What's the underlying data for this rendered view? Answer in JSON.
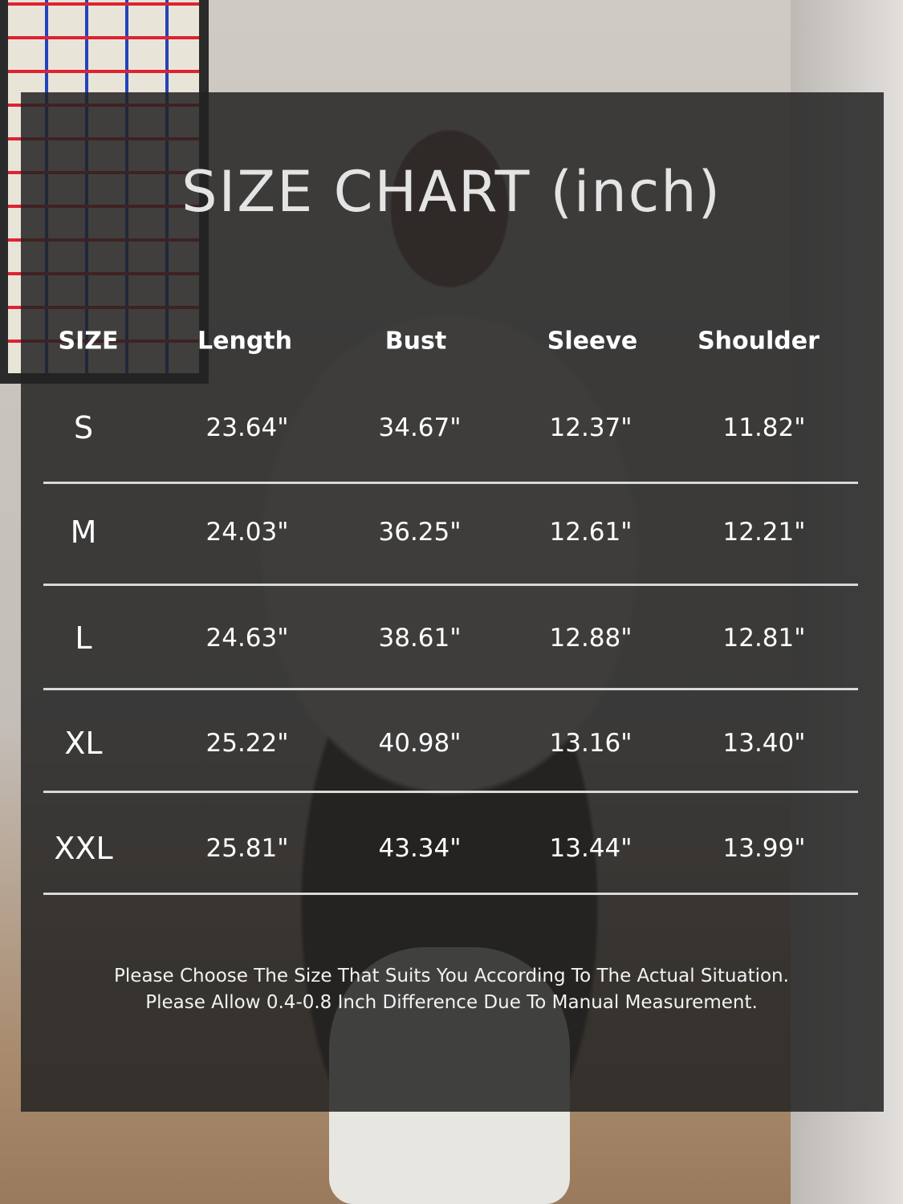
{
  "title": "SIZE CHART (inch)",
  "table": {
    "headers": [
      "SIZE",
      "Length",
      "Bust",
      "Sleeve",
      "Shoulder"
    ],
    "rows": [
      [
        "S",
        "23.64\"",
        "34.67\"",
        "12.37\"",
        "11.82\""
      ],
      [
        "M",
        "24.03\"",
        "36.25\"",
        "12.61\"",
        "12.21\""
      ],
      [
        "L",
        "24.63\"",
        "38.61\"",
        "12.88\"",
        "12.81\""
      ],
      [
        "XL",
        "25.22\"",
        "40.98\"",
        "13.16\"",
        "13.40\""
      ],
      [
        "XXL",
        "25.81\"",
        "43.34\"",
        "13.44\"",
        "13.99\""
      ]
    ]
  },
  "notes": [
    "Please Choose The Size That Suits You According To The Actual Situation.",
    "Please Allow 0.4-0.8 Inch Difference Due To Manual Measurement."
  ],
  "colors": {
    "panel": "#222222",
    "text": "#ffffff",
    "rule": "#d8d8d8"
  }
}
